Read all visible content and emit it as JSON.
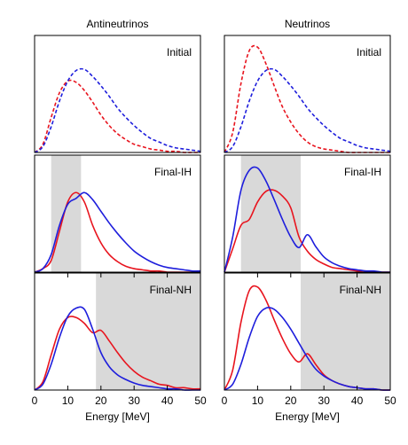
{
  "chart_data": [
    {
      "type": "line",
      "title": "Antineutrinos",
      "label": "Initial",
      "x": [
        0,
        2.5,
        5,
        7.5,
        10,
        12.5,
        15,
        17.5,
        20,
        22.5,
        25,
        27.5,
        30,
        32.5,
        35,
        37.5,
        40,
        42.5,
        45,
        47.5,
        50
      ],
      "xlim": [
        0,
        50
      ],
      "ylim": [
        0,
        1
      ],
      "series": [
        {
          "color": "#e8141e",
          "dash": true,
          "values": [
            0,
            0.07,
            0.3,
            0.51,
            0.61,
            0.6,
            0.53,
            0.43,
            0.32,
            0.23,
            0.16,
            0.11,
            0.07,
            0.05,
            0.03,
            0.02,
            0.01,
            0.01,
            0,
            0,
            0
          ]
        },
        {
          "color": "#1e1edc",
          "dash": true,
          "values": [
            0,
            0.05,
            0.22,
            0.44,
            0.61,
            0.7,
            0.71,
            0.65,
            0.57,
            0.48,
            0.38,
            0.3,
            0.23,
            0.17,
            0.12,
            0.09,
            0.06,
            0.04,
            0.03,
            0.02,
            0.01
          ]
        }
      ]
    },
    {
      "type": "line",
      "title": "Neutrinos",
      "label": "Initial",
      "x": [
        0,
        2.5,
        5,
        7.5,
        10,
        12.5,
        15,
        17.5,
        20,
        22.5,
        25,
        27.5,
        30,
        32.5,
        35,
        37.5,
        40,
        42.5,
        45,
        47.5,
        50
      ],
      "xlim": [
        0,
        50
      ],
      "ylim": [
        0,
        1
      ],
      "series": [
        {
          "color": "#e8141e",
          "dash": true,
          "values": [
            0,
            0.17,
            0.59,
            0.87,
            0.9,
            0.76,
            0.57,
            0.39,
            0.26,
            0.16,
            0.09,
            0.05,
            0.03,
            0.02,
            0.01,
            0,
            0,
            0,
            0,
            0,
            0
          ]
        },
        {
          "color": "#1e1edc",
          "dash": true,
          "values": [
            0,
            0.05,
            0.22,
            0.44,
            0.61,
            0.7,
            0.71,
            0.65,
            0.57,
            0.48,
            0.38,
            0.3,
            0.23,
            0.17,
            0.12,
            0.09,
            0.06,
            0.04,
            0.03,
            0.02,
            0.01
          ]
        }
      ]
    },
    {
      "type": "line",
      "label": "Final-IH",
      "shade": [
        5,
        14
      ],
      "x": [
        0,
        2.5,
        5,
        7.5,
        10,
        12.5,
        15,
        17.5,
        20,
        22.5,
        25,
        27.5,
        30,
        32.5,
        35,
        37.5,
        40,
        42.5,
        45,
        47.5,
        50
      ],
      "xlim": [
        0,
        50
      ],
      "ylim": [
        0,
        1
      ],
      "series": [
        {
          "color": "#e8141e",
          "dash": false,
          "values": [
            0,
            0.03,
            0.1,
            0.35,
            0.6,
            0.68,
            0.6,
            0.4,
            0.25,
            0.15,
            0.09,
            0.05,
            0.03,
            0.02,
            0.01,
            0.01,
            0,
            0,
            0,
            0,
            0
          ]
        },
        {
          "color": "#1e1edc",
          "dash": false,
          "values": [
            0,
            0.03,
            0.15,
            0.4,
            0.58,
            0.63,
            0.68,
            0.62,
            0.52,
            0.42,
            0.33,
            0.25,
            0.18,
            0.13,
            0.09,
            0.06,
            0.04,
            0.03,
            0.02,
            0.01,
            0.01
          ]
        }
      ]
    },
    {
      "type": "line",
      "label": "Final-IH",
      "shade": [
        5,
        23
      ],
      "x": [
        0,
        2.5,
        5,
        7.5,
        10,
        12.5,
        15,
        17.5,
        20,
        22.5,
        25,
        27.5,
        30,
        32.5,
        35,
        37.5,
        40,
        42.5,
        45,
        47.5,
        50
      ],
      "xlim": [
        0,
        50
      ],
      "ylim": [
        0,
        1
      ],
      "series": [
        {
          "color": "#e8141e",
          "dash": false,
          "values": [
            0,
            0.2,
            0.4,
            0.45,
            0.6,
            0.69,
            0.7,
            0.65,
            0.55,
            0.3,
            0.18,
            0.11,
            0.07,
            0.04,
            0.03,
            0.02,
            0.01,
            0.01,
            0,
            0,
            0
          ]
        },
        {
          "color": "#1e1edc",
          "dash": false,
          "values": [
            0,
            0.3,
            0.7,
            0.87,
            0.89,
            0.78,
            0.62,
            0.45,
            0.3,
            0.21,
            0.32,
            0.22,
            0.13,
            0.08,
            0.05,
            0.03,
            0.02,
            0.01,
            0.01,
            0,
            0
          ]
        }
      ]
    },
    {
      "type": "line",
      "label": "Final-NH",
      "shade": [
        18.5,
        50
      ],
      "xlabel": "Energy [MeV]",
      "x": [
        0,
        2.5,
        5,
        7.5,
        10,
        12.5,
        15,
        17.5,
        20,
        22.5,
        25,
        27.5,
        30,
        32.5,
        35,
        37.5,
        40,
        42.5,
        45,
        47.5,
        50
      ],
      "xlim": [
        0,
        50
      ],
      "ylim": [
        0,
        1
      ],
      "xticks": [
        0,
        10,
        20,
        30,
        40,
        50
      ],
      "series": [
        {
          "color": "#e8141e",
          "dash": false,
          "values": [
            0,
            0.07,
            0.3,
            0.52,
            0.62,
            0.62,
            0.57,
            0.49,
            0.51,
            0.42,
            0.32,
            0.23,
            0.16,
            0.11,
            0.08,
            0.05,
            0.04,
            0.02,
            0.02,
            0.01,
            0.01
          ]
        },
        {
          "color": "#1e1edc",
          "dash": false,
          "values": [
            0,
            0.05,
            0.22,
            0.45,
            0.63,
            0.7,
            0.69,
            0.52,
            0.32,
            0.2,
            0.13,
            0.09,
            0.06,
            0.04,
            0.03,
            0.02,
            0.01,
            0.01,
            0,
            0,
            0
          ]
        }
      ]
    },
    {
      "type": "line",
      "label": "Final-NH",
      "shade": [
        23,
        50
      ],
      "xlabel": "Energy [MeV]",
      "x": [
        0,
        2.5,
        5,
        7.5,
        10,
        12.5,
        15,
        17.5,
        20,
        22.5,
        25,
        27.5,
        30,
        32.5,
        35,
        37.5,
        40,
        42.5,
        45,
        47.5,
        50
      ],
      "xlim": [
        0,
        50
      ],
      "ylim": [
        0,
        1
      ],
      "xticks": [
        0,
        10,
        20,
        30,
        40,
        50
      ],
      "series": [
        {
          "color": "#e8141e",
          "dash": false,
          "values": [
            0,
            0.17,
            0.58,
            0.85,
            0.88,
            0.77,
            0.6,
            0.44,
            0.31,
            0.24,
            0.31,
            0.22,
            0.13,
            0.08,
            0.05,
            0.03,
            0.02,
            0.01,
            0.01,
            0,
            0
          ]
        },
        {
          "color": "#1e1edc",
          "dash": false,
          "values": [
            0,
            0.05,
            0.22,
            0.45,
            0.63,
            0.7,
            0.69,
            0.62,
            0.52,
            0.4,
            0.28,
            0.18,
            0.12,
            0.08,
            0.05,
            0.03,
            0.02,
            0.01,
            0.01,
            0,
            0
          ]
        }
      ]
    }
  ]
}
